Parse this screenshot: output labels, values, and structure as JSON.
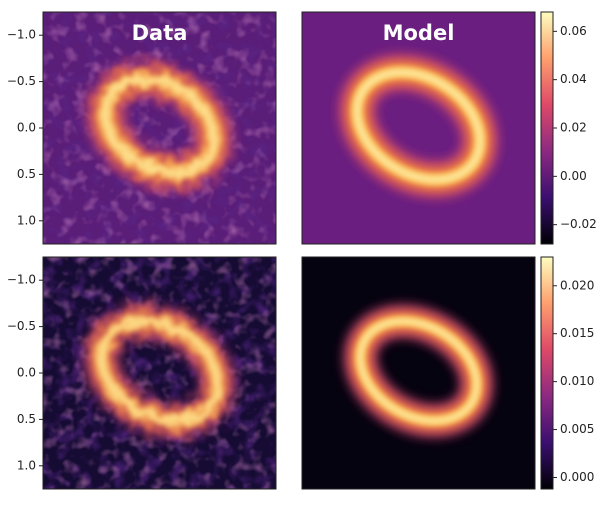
{
  "chart_data": [
    {
      "type": "image",
      "title": "Data",
      "background": "#5a1d78",
      "noise": true,
      "ylim": [
        -1.25,
        1.25
      ],
      "yticks": [
        {
          "value": -1.0,
          "label": "−1.0"
        },
        {
          "value": -0.5,
          "label": "−0.5"
        },
        {
          "value": 0.0,
          "label": "0.0"
        },
        0.5,
        {
          "value": 1.0,
          "label": "1.0"
        }
      ]
    },
    {
      "type": "image",
      "title": "Model",
      "background": "#6a1f80",
      "noise": false,
      "ylim": [
        -1.25,
        1.25
      ]
    },
    {
      "type": "colorbar",
      "ylim": [
        -0.028,
        0.068
      ],
      "yticks": [
        0.06,
        0.04,
        0.02,
        {
          "value": 0,
          "label": "0.00"
        },
        {
          "value": -0.02,
          "label": "−0.02"
        }
      ]
    },
    {
      "type": "image",
      "background": "#150b33",
      "noise": true,
      "ylim": [
        -1.25,
        1.25
      ],
      "yticks": [
        {
          "value": -1.0,
          "label": "−1.0"
        },
        {
          "value": -0.5,
          "label": "−0.5"
        },
        {
          "value": 0.0,
          "label": "0.0"
        },
        0.5,
        {
          "value": 1.0,
          "label": "1.0"
        }
      ]
    },
    {
      "type": "image",
      "background": "#05030f",
      "noise": false,
      "ylim": [
        -1.25,
        1.25
      ]
    },
    {
      "type": "colorbar",
      "ylim": [
        -0.0012,
        0.023
      ],
      "yticks": [
        {
          "value": 0.02,
          "label": "0.020"
        },
        0.015,
        {
          "value": 0.01,
          "label": "0.010"
        },
        0.005,
        {
          "value": 0,
          "label": "0.000"
        }
      ]
    }
  ]
}
